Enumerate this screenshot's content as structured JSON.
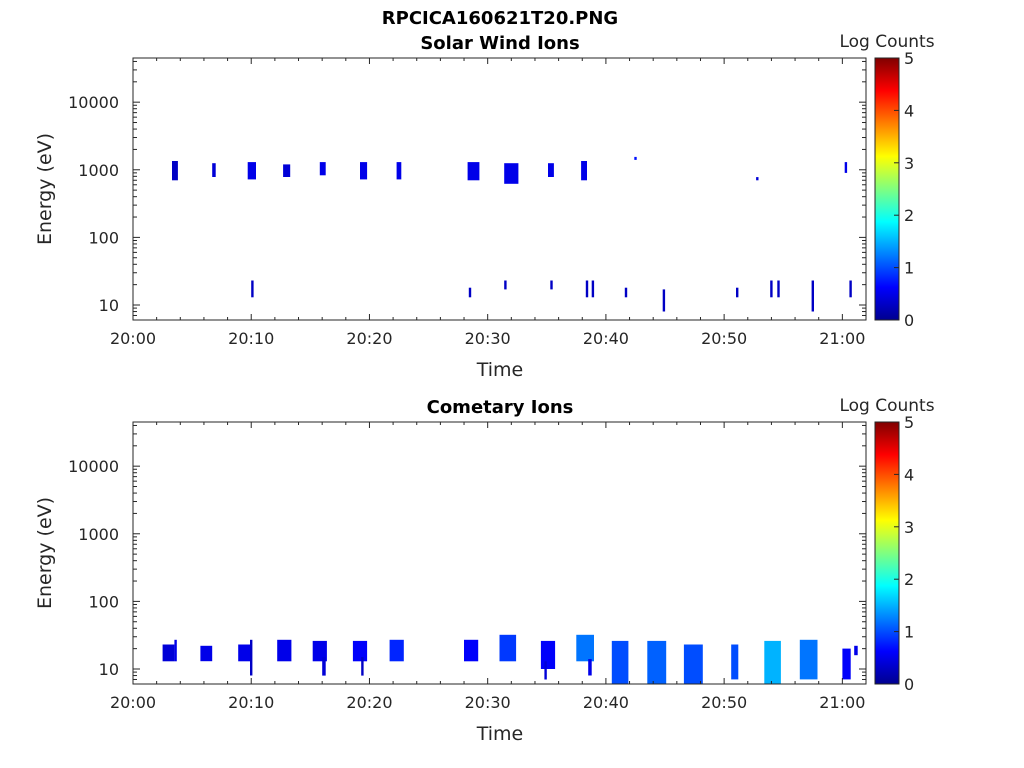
{
  "figure_title": "RPCICA160621T20.PNG",
  "chart_data": [
    {
      "type": "heatmap",
      "title": "Solar Wind Ions",
      "xlabel": "Time",
      "ylabel": "Energy (eV)",
      "x_ticks": [
        "20:00",
        "20:10",
        "20:20",
        "20:30",
        "20:40",
        "20:50",
        "21:00"
      ],
      "x_range": [
        "20:00",
        "21:02"
      ],
      "y_scale": "log",
      "y_ticks": [
        "10",
        "100",
        "1000",
        "10000"
      ],
      "y_range": [
        6,
        45000
      ],
      "colorbar": {
        "label": "Log Counts",
        "ticks": [
          "0",
          "1",
          "2",
          "3",
          "4",
          "5"
        ],
        "range": [
          0,
          5
        ],
        "colormap": "jet"
      },
      "blobs": [
        {
          "t0": "20:03.3",
          "t1": "20:03.8",
          "e0": 700,
          "e1": 1350,
          "v": 0.3
        },
        {
          "t0": "20:06.7",
          "t1": "20:07.0",
          "e0": 780,
          "e1": 1250,
          "v": 0.4
        },
        {
          "t0": "20:09.7",
          "t1": "20:10.4",
          "e0": 720,
          "e1": 1300,
          "v": 0.5
        },
        {
          "t0": "20:12.7",
          "t1": "20:13.3",
          "e0": 780,
          "e1": 1200,
          "v": 0.4
        },
        {
          "t0": "20:15.8",
          "t1": "20:16.3",
          "e0": 830,
          "e1": 1300,
          "v": 0.5
        },
        {
          "t0": "20:19.2",
          "t1": "20:19.8",
          "e0": 720,
          "e1": 1300,
          "v": 0.5
        },
        {
          "t0": "20:22.3",
          "t1": "20:22.7",
          "e0": 720,
          "e1": 1300,
          "v": 0.5
        },
        {
          "t0": "20:28.3",
          "t1": "20:29.3",
          "e0": 700,
          "e1": 1300,
          "v": 0.5
        },
        {
          "t0": "20:31.4",
          "t1": "20:32.6",
          "e0": 620,
          "e1": 1250,
          "v": 0.5
        },
        {
          "t0": "20:35.1",
          "t1": "20:35.6",
          "e0": 780,
          "e1": 1250,
          "v": 0.5
        },
        {
          "t0": "20:37.9",
          "t1": "20:38.4",
          "e0": 700,
          "e1": 1350,
          "v": 0.5
        },
        {
          "t0": "20:42.4",
          "t1": "20:42.6",
          "e0": 1400,
          "e1": 1550,
          "v": 0.7
        },
        {
          "t0": "20:52.7",
          "t1": "20:52.9",
          "e0": 700,
          "e1": 780,
          "v": 0.4
        },
        {
          "t0": "21:00.2",
          "t1": "21:00.4",
          "e0": 900,
          "e1": 1300,
          "v": 0.5
        },
        {
          "t0": "20:10.0",
          "t1": "20:10.2",
          "e0": 13,
          "e1": 23,
          "v": 0.3
        },
        {
          "t0": "20:28.4",
          "t1": "20:28.6",
          "e0": 13,
          "e1": 18,
          "v": 0.3
        },
        {
          "t0": "20:31.4",
          "t1": "20:31.6",
          "e0": 17,
          "e1": 23,
          "v": 0.3
        },
        {
          "t0": "20:35.3",
          "t1": "20:35.5",
          "e0": 17,
          "e1": 23,
          "v": 0.3
        },
        {
          "t0": "20:38.3",
          "t1": "20:38.5",
          "e0": 13,
          "e1": 23,
          "v": 0.3
        },
        {
          "t0": "20:38.8",
          "t1": "20:39.0",
          "e0": 13,
          "e1": 23,
          "v": 0.3
        },
        {
          "t0": "20:41.6",
          "t1": "20:41.8",
          "e0": 13,
          "e1": 18,
          "v": 0.3
        },
        {
          "t0": "20:44.8",
          "t1": "20:45.0",
          "e0": 8,
          "e1": 17,
          "v": 0.3
        },
        {
          "t0": "20:51.0",
          "t1": "20:51.2",
          "e0": 13,
          "e1": 18,
          "v": 0.3
        },
        {
          "t0": "20:53.9",
          "t1": "20:54.1",
          "e0": 13,
          "e1": 23,
          "v": 0.3
        },
        {
          "t0": "20:54.5",
          "t1": "20:54.7",
          "e0": 13,
          "e1": 23,
          "v": 0.3
        },
        {
          "t0": "20:57.4",
          "t1": "20:57.6",
          "e0": 8,
          "e1": 23,
          "v": 0.3
        },
        {
          "t0": "21:00.6",
          "t1": "21:00.8",
          "e0": 13,
          "e1": 23,
          "v": 0.3
        }
      ]
    },
    {
      "type": "heatmap",
      "title": "Cometary Ions",
      "xlabel": "Time",
      "ylabel": "Energy (eV)",
      "x_ticks": [
        "20:00",
        "20:10",
        "20:20",
        "20:30",
        "20:40",
        "20:50",
        "21:00"
      ],
      "x_range": [
        "20:00",
        "21:02"
      ],
      "y_scale": "log",
      "y_ticks": [
        "10",
        "100",
        "1000",
        "10000"
      ],
      "y_range": [
        6,
        45000
      ],
      "colorbar": {
        "label": "Log Counts",
        "ticks": [
          "0",
          "1",
          "2",
          "3",
          "4",
          "5"
        ],
        "range": [
          0,
          5
        ],
        "colormap": "jet"
      },
      "blobs": [
        {
          "t0": "20:02.5",
          "t1": "20:03.5",
          "e0": 13,
          "e1": 23,
          "v": 0.4
        },
        {
          "t0": "20:03.5",
          "t1": "20:03.7",
          "e0": 13,
          "e1": 27,
          "v": 0.5
        },
        {
          "t0": "20:05.7",
          "t1": "20:06.7",
          "e0": 13,
          "e1": 22,
          "v": 0.5
        },
        {
          "t0": "20:08.9",
          "t1": "20:09.9",
          "e0": 13,
          "e1": 23,
          "v": 0.5
        },
        {
          "t0": "20:09.9",
          "t1": "20:10.1",
          "e0": 8,
          "e1": 27,
          "v": 0.3
        },
        {
          "t0": "20:12.2",
          "t1": "20:13.4",
          "e0": 13,
          "e1": 27,
          "v": 0.5
        },
        {
          "t0": "20:15.2",
          "t1": "20:16.4",
          "e0": 13,
          "e1": 26,
          "v": 0.5
        },
        {
          "t0": "20:16.0",
          "t1": "20:16.3",
          "e0": 8,
          "e1": 15,
          "v": 0.4
        },
        {
          "t0": "20:18.6",
          "t1": "20:19.8",
          "e0": 13,
          "e1": 26,
          "v": 0.6
        },
        {
          "t0": "20:19.3",
          "t1": "20:19.5",
          "e0": 8,
          "e1": 15,
          "v": 0.3
        },
        {
          "t0": "20:21.7",
          "t1": "20:22.9",
          "e0": 13,
          "e1": 27,
          "v": 0.8
        },
        {
          "t0": "20:28.0",
          "t1": "20:29.2",
          "e0": 13,
          "e1": 27,
          "v": 0.6
        },
        {
          "t0": "20:31.0",
          "t1": "20:32.4",
          "e0": 13,
          "e1": 32,
          "v": 0.9
        },
        {
          "t0": "20:34.5",
          "t1": "20:35.7",
          "e0": 10,
          "e1": 26,
          "v": 0.6
        },
        {
          "t0": "20:34.8",
          "t1": "20:35.0",
          "e0": 7,
          "e1": 13,
          "v": 0.4
        },
        {
          "t0": "20:37.5",
          "t1": "20:39.0",
          "e0": 13,
          "e1": 32,
          "v": 1.2
        },
        {
          "t0": "20:38.5",
          "t1": "20:38.8",
          "e0": 8,
          "e1": 14,
          "v": 0.5
        },
        {
          "t0": "20:40.5",
          "t1": "20:41.9",
          "e0": 6,
          "e1": 26,
          "v": 1.0
        },
        {
          "t0": "20:43.5",
          "t1": "20:45.1",
          "e0": 6,
          "e1": 26,
          "v": 1.1
        },
        {
          "t0": "20:46.6",
          "t1": "20:48.2",
          "e0": 6,
          "e1": 23,
          "v": 1.0
        },
        {
          "t0": "20:50.6",
          "t1": "20:51.2",
          "e0": 7,
          "e1": 23,
          "v": 1.0
        },
        {
          "t0": "20:53.4",
          "t1": "20:54.8",
          "e0": 6,
          "e1": 26,
          "v": 1.5
        },
        {
          "t0": "20:56.4",
          "t1": "20:57.9",
          "e0": 7,
          "e1": 27,
          "v": 1.2
        },
        {
          "t0": "21:00.0",
          "t1": "21:00.7",
          "e0": 7,
          "e1": 20,
          "v": 0.6
        },
        {
          "t0": "21:01.0",
          "t1": "21:01.3",
          "e0": 16,
          "e1": 22,
          "v": 0.5
        }
      ]
    }
  ]
}
